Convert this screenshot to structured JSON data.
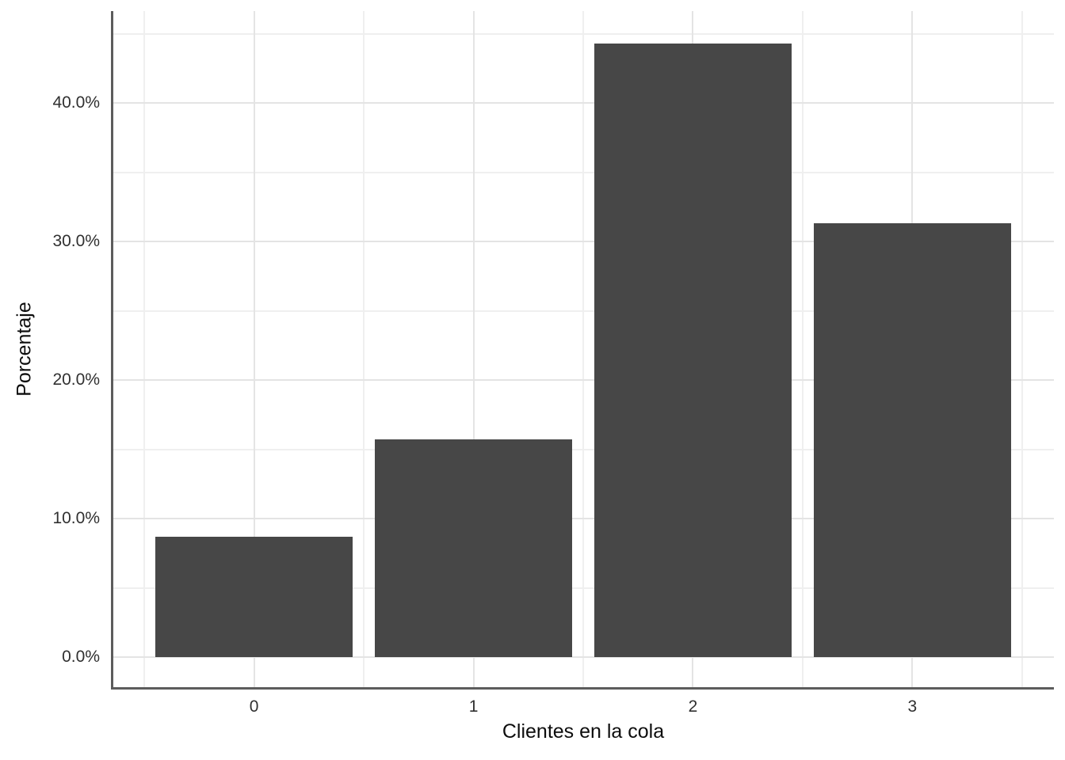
{
  "chart_data": {
    "type": "bar",
    "categories": [
      "0",
      "1",
      "2",
      "3"
    ],
    "values": [
      8.7,
      15.7,
      44.3,
      31.3
    ],
    "title": "",
    "xlabel": "Clientes en la cola",
    "ylabel": "Porcentaje",
    "ylim": [
      -2.2,
      46.6
    ],
    "y_major_ticks": [
      0,
      10,
      20,
      30,
      40
    ],
    "y_minor_ticks": [
      5,
      15,
      25,
      35,
      45
    ],
    "y_tick_labels": [
      "0.0%",
      "10.0%",
      "20.0%",
      "30.0%",
      "40.0%"
    ],
    "value_unit": "percent",
    "grid": "on",
    "legend_position": "none",
    "colors": {
      "bar_fill": "#474747",
      "axis_line": "#5c5c5c",
      "grid_major": "#e4e4e4",
      "grid_minor": "#efefef",
      "tick_text": "#303030",
      "title_text": "#0d0d0d",
      "background": "#ffffff"
    }
  }
}
